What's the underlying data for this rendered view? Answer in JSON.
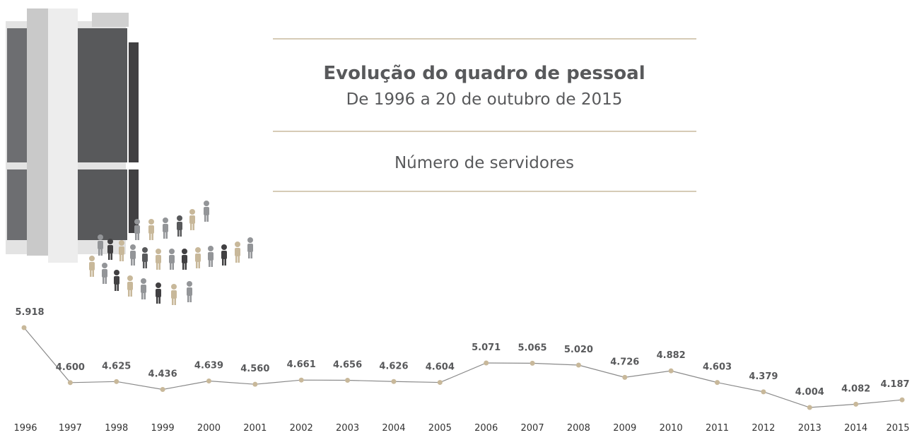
{
  "chart_data": {
    "type": "line",
    "title": "Evolução do quadro de pessoal",
    "subtitle": "De 1996 a 20 de outubro de 2015",
    "caption": "Número de servidores",
    "line_color": "#8a8a8a",
    "marker_color": "#c8b89a",
    "categories": [
      "1996",
      "1997",
      "1998",
      "1999",
      "2000",
      "2001",
      "2002",
      "2003",
      "2004",
      "2005",
      "2006",
      "2007",
      "2008",
      "2009",
      "2010",
      "2011",
      "2012",
      "2013",
      "2014",
      "2015"
    ],
    "values": [
      5918,
      4600,
      4625,
      4436,
      4639,
      4560,
      4661,
      4656,
      4626,
      4604,
      5071,
      5065,
      5020,
      4726,
      4882,
      4603,
      4379,
      4004,
      4082,
      4187
    ],
    "value_labels": [
      "5.918",
      "4.600",
      "4.625",
      "4.436",
      "4.639",
      "4.560",
      "4.661",
      "4.656",
      "4.626",
      "4.604",
      "5.071",
      "5.065",
      "5.020",
      "4.726",
      "4.882",
      "4.603",
      "4.379",
      "4.004",
      "4.082",
      "4.187"
    ]
  }
}
